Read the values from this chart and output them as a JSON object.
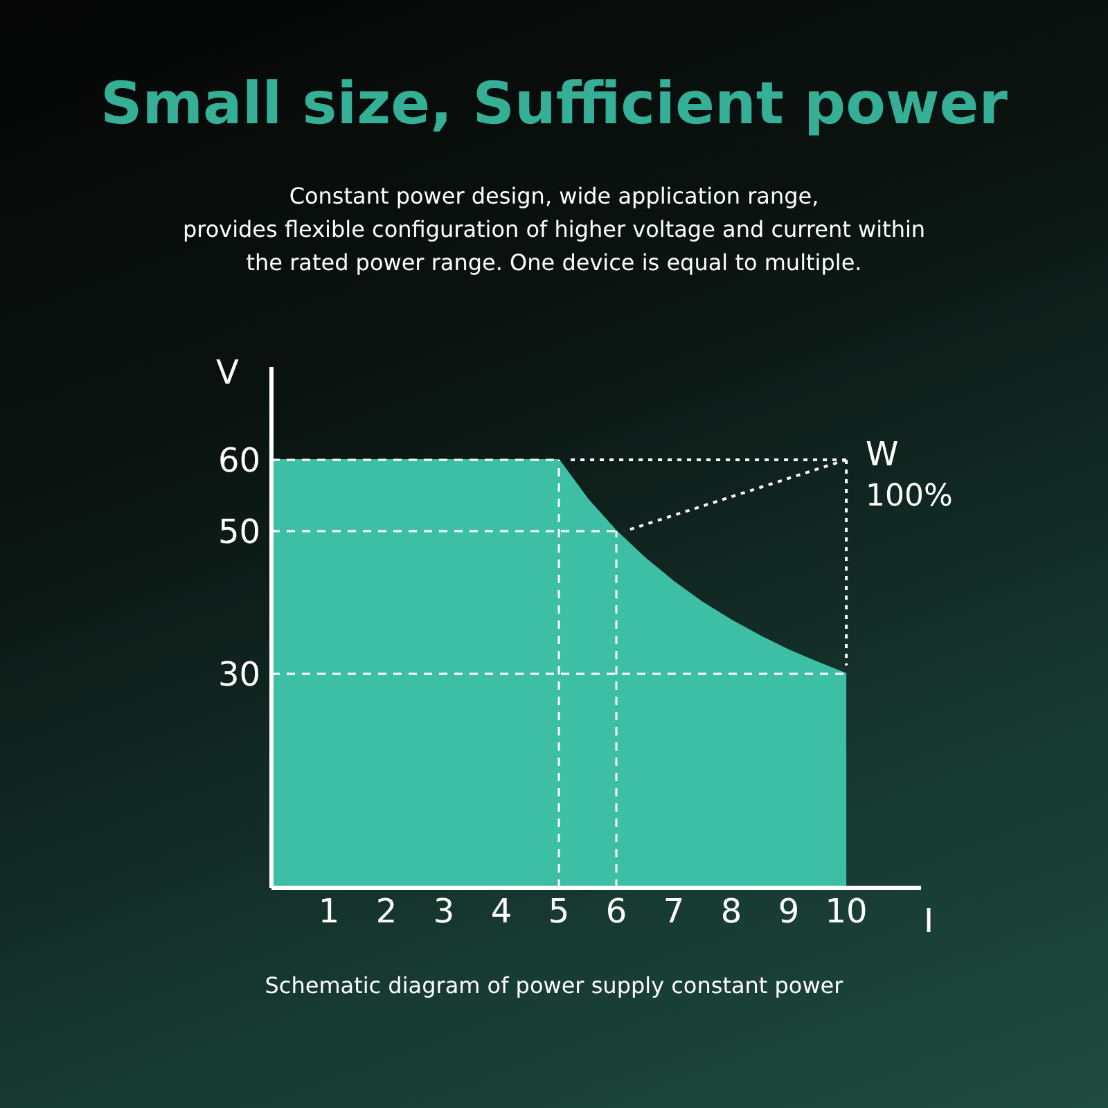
{
  "chart_data": {
    "type": "area",
    "title": "Small size, Sufficient power",
    "subtitle": "Constant power design, wide application range,\nprovides flexible configuration of higher voltage and current within\nthe rated power range. One device is equal to multiple.",
    "xlabel": "I",
    "ylabel": "V",
    "x": [
      0,
      5,
      5.5,
      6,
      6.5,
      7,
      7.5,
      8,
      8.5,
      9,
      9.5,
      10
    ],
    "series": [
      {
        "color": "#3dbfa6",
        "values": [
          60,
          60,
          54.5,
          50,
          46.2,
          42.9,
          40,
          37.5,
          35.3,
          33.3,
          31.6,
          30
        ]
      }
    ],
    "xlim": [
      0,
      11.3
    ],
    "xticks": [
      1,
      2,
      3,
      4,
      5,
      6,
      7,
      8,
      9,
      10
    ],
    "ylim": [
      0,
      73
    ],
    "yticks": [
      30,
      50,
      60
    ],
    "ref_lines": [
      {
        "axis": "y",
        "value": 60,
        "color": "#ffffff",
        "line_style": "dashed"
      },
      {
        "axis": "y",
        "value": 50,
        "color": "#ffffff",
        "line_style": "dashed"
      },
      {
        "axis": "y",
        "value": 30,
        "color": "#ffffff",
        "line_style": "dashed"
      },
      {
        "axis": "x",
        "value": 5,
        "color": "#ffffff",
        "line_style": "dashed"
      },
      {
        "axis": "x",
        "value": 6,
        "color": "#ffffff",
        "line_style": "dashed"
      }
    ],
    "annotations": [
      {
        "text": "W",
        "x": 10,
        "y": 60
      },
      {
        "text": "100%",
        "x": 10,
        "y": 60
      },
      "Schematic diagram of power supply constant power"
    ]
  }
}
